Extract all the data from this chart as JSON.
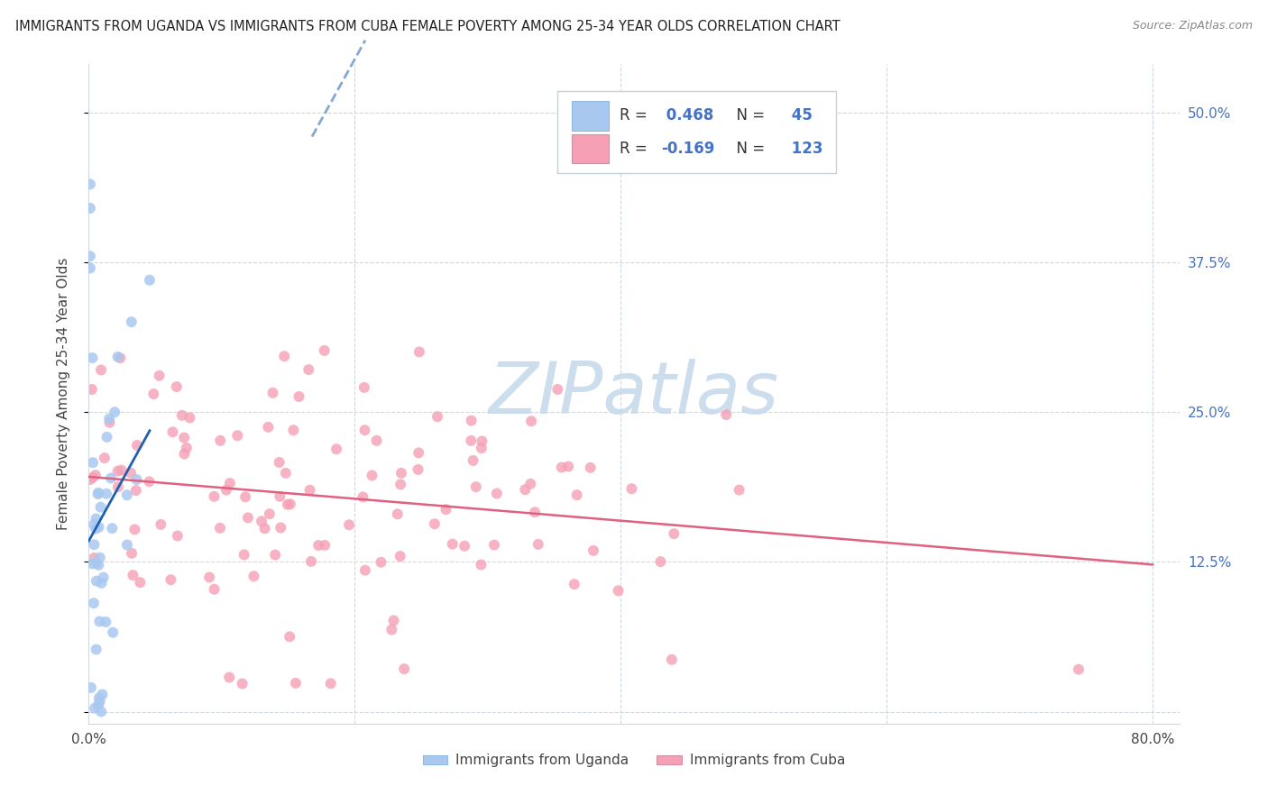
{
  "title": "IMMIGRANTS FROM UGANDA VS IMMIGRANTS FROM CUBA FEMALE POVERTY AMONG 25-34 YEAR OLDS CORRELATION CHART",
  "source": "Source: ZipAtlas.com",
  "ylabel": "Female Poverty Among 25-34 Year Olds",
  "yticks": [
    0.0,
    0.125,
    0.25,
    0.375,
    0.5
  ],
  "ytick_labels": [
    "",
    "12.5%",
    "25.0%",
    "37.5%",
    "50.0%"
  ],
  "xlim": [
    0.0,
    0.82
  ],
  "ylim": [
    -0.01,
    0.54
  ],
  "R_uganda": 0.468,
  "N_uganda": 45,
  "R_cuba": -0.169,
  "N_cuba": 123,
  "color_uganda": "#a8c8f0",
  "color_cuba": "#f5a0b5",
  "line_color_uganda": "#2060b0",
  "line_color_cuba": "#e06080",
  "watermark_text": "ZIPatlas",
  "watermark_color": "#ccdded",
  "legend_label_uganda": "Immigrants from Uganda",
  "legend_label_cuba": "Immigrants from Cuba"
}
